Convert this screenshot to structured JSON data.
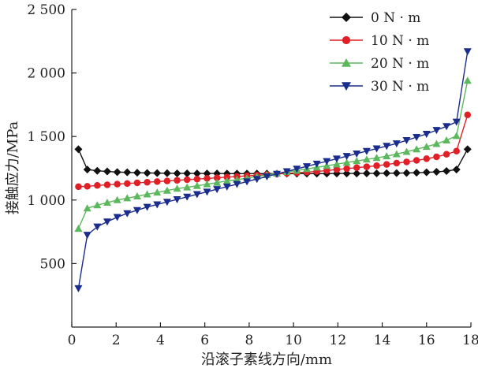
{
  "chart_data": {
    "type": "line",
    "xlabel": "沿滚子素线方向/mm",
    "ylabel": "接触应力/MPa",
    "xlim": [
      0,
      18
    ],
    "ylim": [
      0,
      2500
    ],
    "xticks": [
      0,
      2,
      4,
      6,
      8,
      10,
      12,
      14,
      16,
      18
    ],
    "xtick_labels": [
      "0",
      "2",
      "4",
      "6",
      "8",
      "10",
      "12",
      "14",
      "16",
      "18"
    ],
    "yticks": [
      500,
      1000,
      1500,
      2000,
      2500
    ],
    "ytick_labels": [
      "500",
      "1 000",
      "1 500",
      "2 000",
      "2 500"
    ],
    "grid": false,
    "legend_position": "top-right",
    "x": [
      0.3,
      0.7,
      1.15,
      1.6,
      2.05,
      2.5,
      2.95,
      3.4,
      3.85,
      4.3,
      4.75,
      5.2,
      5.65,
      6.1,
      6.55,
      7.0,
      7.45,
      7.9,
      8.35,
      8.8,
      9.25,
      9.7,
      10.15,
      10.6,
      11.05,
      11.5,
      11.95,
      12.4,
      12.85,
      13.3,
      13.75,
      14.2,
      14.65,
      15.1,
      15.55,
      16.0,
      16.45,
      16.9,
      17.35,
      17.85
    ],
    "series": [
      {
        "name": "0 N · m",
        "color": "#111111",
        "marker": "diamond",
        "values": [
          1400,
          1240,
          1230,
          1225,
          1220,
          1218,
          1215,
          1213,
          1212,
          1211,
          1210,
          1210,
          1209,
          1209,
          1209,
          1208,
          1208,
          1208,
          1208,
          1208,
          1208,
          1208,
          1208,
          1208,
          1208,
          1208,
          1209,
          1209,
          1209,
          1210,
          1210,
          1211,
          1212,
          1213,
          1215,
          1218,
          1222,
          1228,
          1240,
          1400
        ]
      },
      {
        "name": "10 N · m",
        "color": "#e01f26",
        "marker": "circle",
        "values": [
          1105,
          1108,
          1115,
          1120,
          1125,
          1130,
          1135,
          1140,
          1145,
          1150,
          1155,
          1160,
          1165,
          1170,
          1175,
          1180,
          1185,
          1190,
          1195,
          1200,
          1205,
          1210,
          1215,
          1220,
          1225,
          1232,
          1240,
          1247,
          1255,
          1262,
          1270,
          1280,
          1290,
          1300,
          1312,
          1325,
          1340,
          1360,
          1385,
          1670
        ]
      },
      {
        "name": "20 N · m",
        "color": "#5cb85c",
        "marker": "triangle-up",
        "values": [
          775,
          935,
          960,
          980,
          1000,
          1015,
          1030,
          1045,
          1060,
          1075,
          1090,
          1100,
          1112,
          1125,
          1137,
          1150,
          1160,
          1172,
          1185,
          1197,
          1210,
          1222,
          1232,
          1245,
          1257,
          1270,
          1282,
          1295,
          1307,
          1320,
          1332,
          1345,
          1362,
          1380,
          1400,
          1420,
          1442,
          1470,
          1505,
          1940
        ]
      },
      {
        "name": "30 N · m",
        "color": "#1a2c8c",
        "marker": "triangle-down",
        "values": [
          305,
          725,
          790,
          830,
          865,
          895,
          920,
          945,
          965,
          985,
          1005,
          1025,
          1045,
          1065,
          1085,
          1105,
          1125,
          1145,
          1165,
          1185,
          1205,
          1225,
          1245,
          1265,
          1285,
          1305,
          1325,
          1345,
          1365,
          1385,
          1405,
          1425,
          1445,
          1470,
          1495,
          1520,
          1550,
          1580,
          1615,
          2170
        ]
      }
    ]
  }
}
